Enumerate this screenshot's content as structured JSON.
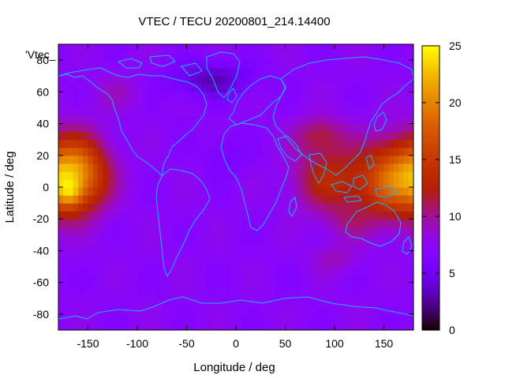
{
  "chart_data": {
    "type": "heatmap",
    "title": "VTEC / TECU 20200801_214.14400",
    "xlabel": "Longitude / deg",
    "ylabel": "Latitude / deg",
    "key_label": "'Vtec_",
    "xlim": [
      -180,
      180
    ],
    "ylim": [
      -90,
      90
    ],
    "x_ticks": [
      -150,
      -100,
      -50,
      0,
      50,
      100,
      150
    ],
    "y_ticks": [
      -80,
      -60,
      -40,
      -20,
      0,
      20,
      40,
      60,
      80
    ],
    "colorbar": {
      "range": [
        0,
        25
      ],
      "ticks": [
        0,
        5,
        10,
        15,
        20,
        25
      ],
      "palette": "gnuplot-default-rgbformulae-7-5-15"
    },
    "grid_resolution_deg": [
      5,
      5
    ],
    "features": [
      {
        "lon": -162,
        "lat": 8,
        "amp": 13,
        "sx": 22,
        "sy": 16
      },
      {
        "lon": -168,
        "lat": -4,
        "amp": 4,
        "sx": 8,
        "sy": 6
      },
      {
        "lon": 158,
        "lat": 5,
        "amp": 10,
        "sx": 24,
        "sy": 17
      },
      {
        "lon": 95,
        "lat": 5,
        "amp": 6,
        "sx": 25,
        "sy": 14
      },
      {
        "lon": 85,
        "lat": 33,
        "amp": 4,
        "sx": 18,
        "sy": 8
      },
      {
        "lon": 115,
        "lat": -22,
        "amp": 2,
        "sx": 18,
        "sy": 8
      },
      {
        "lon": 100,
        "lat": -45,
        "amp": 2,
        "sx": 16,
        "sy": 6
      },
      {
        "lon": -25,
        "lat": 68,
        "amp": -4,
        "sx": 28,
        "sy": 8
      },
      {
        "lon": -10,
        "lat": 20,
        "amp": -1.5,
        "sx": 14,
        "sy": 10
      },
      {
        "lon": -120,
        "lat": 60,
        "amp": 1.5,
        "sx": 20,
        "sy": 8
      }
    ],
    "base_vtec": 7.2
  }
}
